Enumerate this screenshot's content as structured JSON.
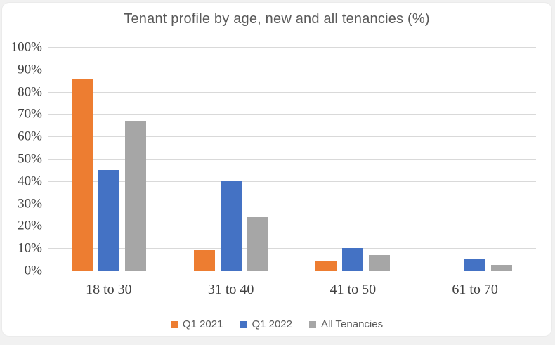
{
  "page": {
    "background_color": "#f1f1f1",
    "card_background_color": "#ffffff"
  },
  "chart_data": {
    "type": "bar",
    "title": "Tenant profile by age, new and all tenancies (%)",
    "categories": [
      "18 to 30",
      "31 to 40",
      "41 to 50",
      "61 to 70"
    ],
    "series": [
      {
        "name": "Q1 2021",
        "color": "#ED7D31",
        "values": [
          86,
          9,
          4.5,
          0
        ]
      },
      {
        "name": "Q1 2022",
        "color": "#4472C4",
        "values": [
          45,
          40,
          10,
          5
        ]
      },
      {
        "name": "All Tenancies",
        "color": "#A6A6A6",
        "values": [
          67,
          24,
          7,
          2.5
        ]
      }
    ],
    "xlabel": "",
    "ylabel": "",
    "ylim": [
      0,
      100
    ],
    "ytick_step": 10,
    "yticks": [
      "0%",
      "10%",
      "20%",
      "30%",
      "40%",
      "50%",
      "60%",
      "70%",
      "80%",
      "90%",
      "100%"
    ],
    "grid": true,
    "gridline_color": "#D9D9D9",
    "legend_position": "bottom",
    "text_color": "#595959",
    "axis_label_color": "#404040"
  }
}
